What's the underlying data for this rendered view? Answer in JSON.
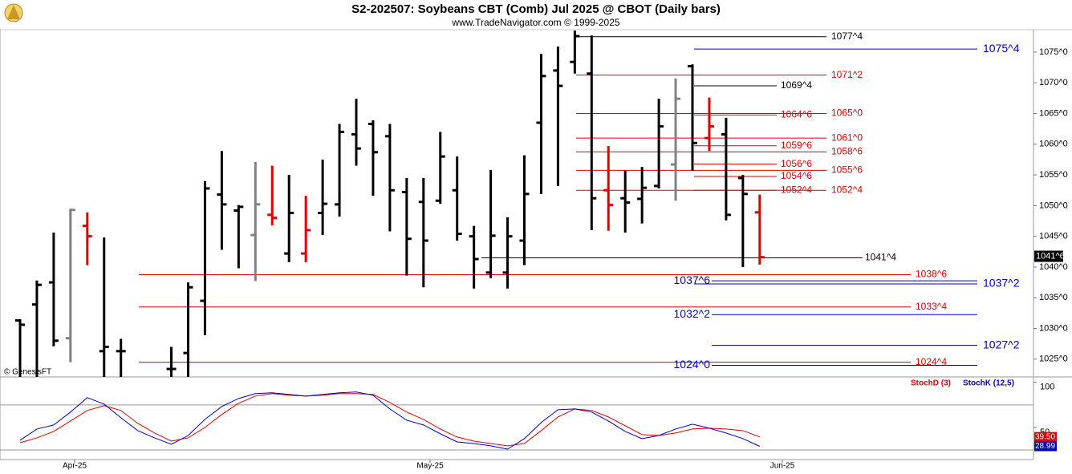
{
  "chart_data": [
    {
      "type": "ohlc",
      "title": "S2-202507:  Soybeans CBT (Comb) Jul 2025 @ CBOT  (Daily bars)",
      "subtitle": "www.TradeNavigator.com © 1999-2025",
      "watermark": "© GenesisFT",
      "ylim": [
        1022.1,
        1078.65
      ],
      "yticks": [
        {
          "value": 1025,
          "label": "1025^0"
        },
        {
          "value": 1030,
          "label": "1030^0"
        },
        {
          "value": 1035,
          "label": "1035^0"
        },
        {
          "value": 1040,
          "label": "1040^0"
        },
        {
          "value": 1045,
          "label": "1045^0"
        },
        {
          "value": 1050,
          "label": "1050^0"
        },
        {
          "value": 1055,
          "label": "1055^0"
        },
        {
          "value": 1060,
          "label": "1060^0"
        },
        {
          "value": 1065,
          "label": "1065^0"
        },
        {
          "value": 1070,
          "label": "1070^0"
        },
        {
          "value": 1075,
          "label": "1075^0"
        }
      ],
      "last_price": {
        "value": 1041.75,
        "label": "1041^6"
      },
      "ohlc": {
        "open": [
          1031.3,
          1033.9,
          1037.5,
          1028.4,
          1046.7,
          1026.3,
          1026.3,
          1023.4,
          1026.0,
          1034.5,
          1051.8,
          1049.2,
          1045.2,
          1048.5,
          1042.2,
          1042.2,
          1048.8,
          1050.2,
          1061.6,
          1063.3,
          1061.3,
          1052.2,
          1050.6,
          1050.8,
          1052.5,
          1045.0,
          1039.1,
          1039.1,
          1044.3,
          1063.5,
          1072.0,
          1073.4,
          1071.5,
          1052.5,
          1051.2,
          1051.1,
          1053.2,
          1056.7,
          1072.7,
          1061.0,
          1061.6,
          1054.5,
          1048.9
        ],
        "high": [
          1031.5,
          1037.8,
          1045.6,
          1049.5,
          1048.9,
          1044.8,
          1028.3,
          1027.0,
          1037.5,
          1054.0,
          1058.9,
          1050.1,
          1057.1,
          1056.5,
          1055.0,
          1051.6,
          1057.5,
          1063.3,
          1067.4,
          1063.9,
          1063.3,
          1054.5,
          1054.5,
          1062.0,
          1058.0,
          1046.7,
          1055.8,
          1048.1,
          1058.2,
          1074.7,
          1075.9,
          1078.5,
          1077.7,
          1059.7,
          1055.7,
          1056.3,
          1067.4,
          1070.7,
          1073.0,
          1067.6,
          1064.3,
          1055.0,
          1051.8
        ],
        "low": [
          1022.1,
          1022.1,
          1027.1,
          1024.5,
          1040.3,
          1022.1,
          1022.1,
          1022.1,
          1022.1,
          1028.9,
          1042.8,
          1039.8,
          1037.7,
          1046.8,
          1040.8,
          1040.8,
          1045.2,
          1048.2,
          1056.5,
          1051.6,
          1045.8,
          1038.6,
          1036.7,
          1050.3,
          1044.3,
          1036.5,
          1038.2,
          1036.5,
          1040.3,
          1051.9,
          1053.2,
          1071.5,
          1046.0,
          1045.9,
          1045.6,
          1047.1,
          1052.8,
          1050.8,
          1055.7,
          1058.9,
          1047.6,
          1040.0,
          1040.4
        ],
        "close": [
          1030.6,
          1037.1,
          1028.0,
          1049.3,
          1045.0,
          1027.0,
          1026.3,
          1023.4,
          1036.7,
          1052.8,
          1050.2,
          1049.8,
          1050.2,
          1048.0,
          1048.8,
          1046.0,
          1050.3,
          1062.0,
          1059.3,
          1058.7,
          1052.5,
          1044.6,
          1044.3,
          1058.0,
          1045.4,
          1041.3,
          1045.1,
          1045.0,
          1051.9,
          1071.1,
          1069.5,
          1077.6,
          1051.2,
          1050.1,
          1050.5,
          1052.9,
          1062.9,
          1067.4,
          1060.2,
          1062.9,
          1048.5,
          1051.9,
          1041.6
        ],
        "colors": [
          "#000000",
          "#000000",
          "#000000",
          "#808080",
          "#e00000",
          "#000000",
          "#000000",
          "#000000",
          "#000000",
          "#000000",
          "#000000",
          "#000000",
          "#808080",
          "#e00000",
          "#000000",
          "#e00000",
          "#000000",
          "#000000",
          "#000000",
          "#000000",
          "#000000",
          "#000000",
          "#000000",
          "#000000",
          "#000000",
          "#000000",
          "#000000",
          "#000000",
          "#000000",
          "#000000",
          "#000000",
          "#000000",
          "#000000",
          "#e00000",
          "#000000",
          "#000000",
          "#000000",
          "#808080",
          "#000000",
          "#e00000",
          "#000000",
          "#000000",
          "#e00000"
        ]
      },
      "hlines": [
        {
          "value": 1077.5,
          "label": "1077^4",
          "color": "#000000"
        },
        {
          "value": 1075.5,
          "label": "1075^4",
          "color": "#0000c8"
        },
        {
          "value": 1071.25,
          "label": "1071^2",
          "color": "#e00000"
        },
        {
          "value": 1069.5,
          "label": "1069^4",
          "color": "#000000"
        },
        {
          "value": 1065,
          "label": "1065^0",
          "color": "#e00000"
        },
        {
          "value": 1064.75,
          "label": "1064^6",
          "color": "#e00000"
        },
        {
          "value": 1061,
          "label": "1061^0",
          "color": "#e00000"
        },
        {
          "value": 1059.75,
          "label": "1059^6",
          "color": "#e00000"
        },
        {
          "value": 1058.75,
          "label": "1058^6",
          "color": "#e00000"
        },
        {
          "value": 1056.75,
          "label": "1056^6",
          "color": "#e00000"
        },
        {
          "value": 1055.75,
          "label": "1055^6",
          "color": "#e00000"
        },
        {
          "value": 1054.75,
          "label": "1054^6",
          "color": "#e00000"
        },
        {
          "value": 1052.5,
          "label": "1052^4",
          "color": "#e00000"
        },
        {
          "value": 1052.5,
          "label": "1052^4",
          "color": "#e00000"
        },
        {
          "value": 1041.5,
          "label": "1041^4",
          "color": "#000000"
        },
        {
          "value": 1038.75,
          "label": "1038^6",
          "color": "#e00000"
        },
        {
          "value": 1037.75,
          "label": "1037^6",
          "color": "#0000c8"
        },
        {
          "value": 1037.25,
          "label": "1037^2",
          "color": "#0000c8"
        },
        {
          "value": 1033.5,
          "label": "1033^4",
          "color": "#e00000"
        },
        {
          "value": 1032.25,
          "label": "1032^2",
          "color": "#0000c8"
        },
        {
          "value": 1027.25,
          "label": "1027^2",
          "color": "#0000c8"
        },
        {
          "value": 1024,
          "label": "1024^0",
          "color": "#0000c8"
        },
        {
          "value": 1024.5,
          "label": "1024^4",
          "color": "#e00000"
        }
      ]
    },
    {
      "type": "line",
      "ylim": [
        14.3,
        106
      ],
      "yticks": [
        50,
        100
      ],
      "levels": [
        25,
        75
      ],
      "xlabels": [
        "Apr-25",
        "May-25",
        "Jun-25"
      ],
      "series": [
        {
          "name": "StochD (3)",
          "color": "#e00000",
          "last_label": "39.50",
          "values": [
            33,
            38.4,
            45.5,
            57.1,
            68.8,
            74.1,
            68.8,
            54.5,
            43.8,
            34.8,
            38.4,
            50,
            64.3,
            76.8,
            84.8,
            87.5,
            85.7,
            84.8,
            85.7,
            87.5,
            87.5,
            86.6,
            77.7,
            67,
            58.9,
            48.2,
            39.3,
            34.8,
            32.1,
            29.5,
            32.1,
            46.4,
            61.6,
            70.5,
            68.8,
            61.6,
            51.8,
            42,
            41,
            43.8,
            48.2,
            49.1,
            48.2,
            46.4,
            39.5
          ]
        },
        {
          "name": "StochK (12,5)",
          "color": "#0000c8",
          "last_label": "28.99",
          "values": [
            35.7,
            48.2,
            52.7,
            67,
            83,
            75.9,
            60.7,
            46.4,
            38.4,
            31.3,
            41,
            58.9,
            73.2,
            82.1,
            87.5,
            88.4,
            86.6,
            84.8,
            86.6,
            88.4,
            89.3,
            85.7,
            70.5,
            58,
            52.7,
            42.9,
            33.9,
            32.1,
            29.5,
            25.9,
            37.5,
            55.4,
            69.6,
            70.5,
            67,
            57.1,
            45.5,
            37.5,
            41,
            48.2,
            53.6,
            49.1,
            43.8,
            37.5,
            28.99
          ]
        }
      ]
    }
  ]
}
